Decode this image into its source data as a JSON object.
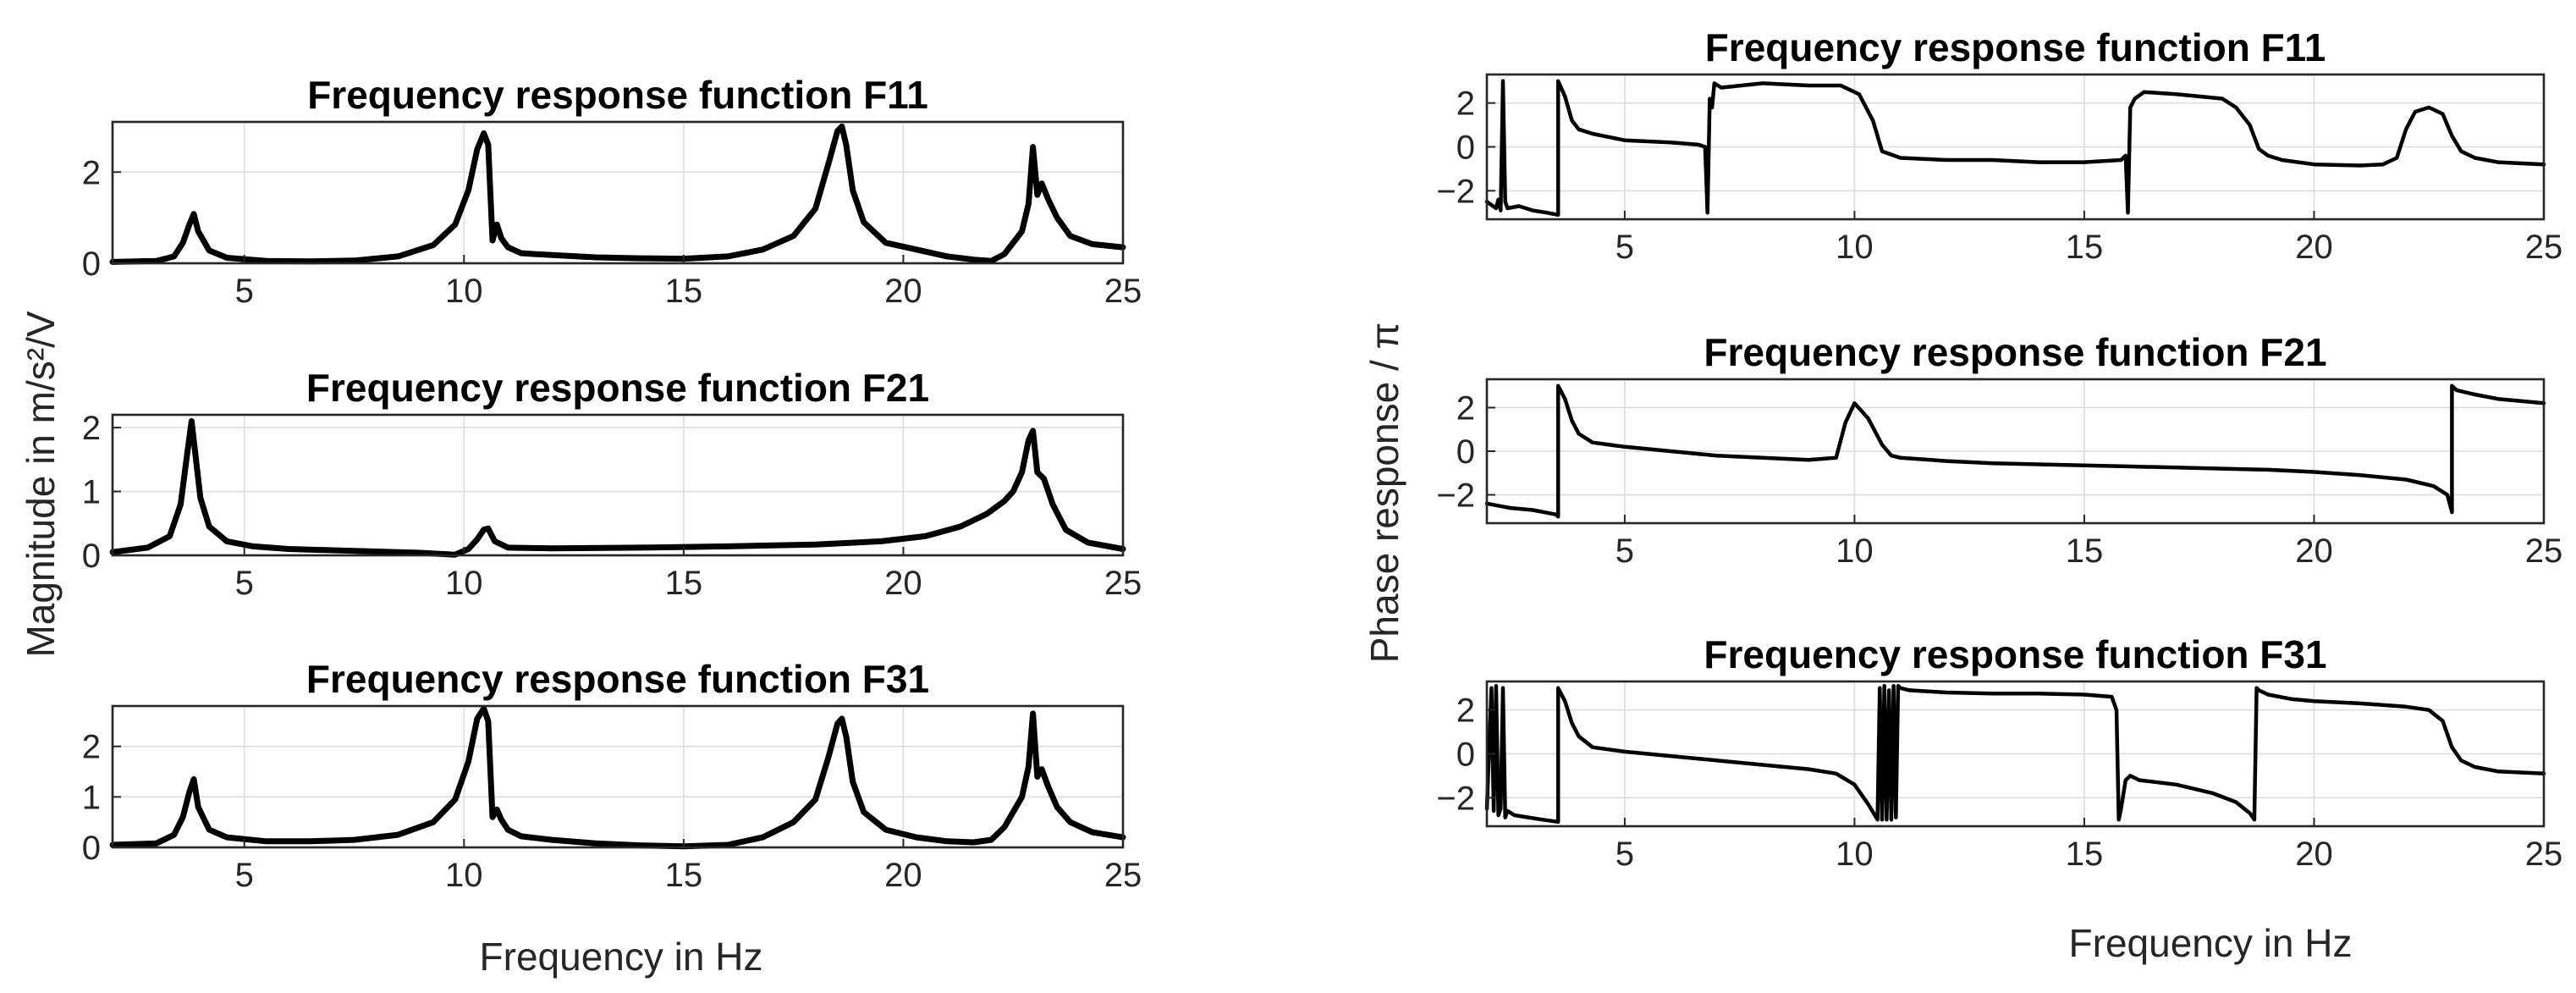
{
  "figure": {
    "left_ylabel": "Magnitude in m/s²/V",
    "left_xlabel": "Frequency in Hz",
    "right_ylabel": "Phase response / π",
    "right_xlabel": "Frequency in Hz"
  },
  "chart_data": [
    {
      "type": "line",
      "id": "mag-F11",
      "title": "Frequency response function F11",
      "xlim": [
        2,
        25
      ],
      "ylim": [
        0,
        3.1
      ],
      "xticks": [
        5,
        10,
        15,
        20,
        25
      ],
      "yticks": [
        0,
        2
      ],
      "grid": true,
      "series": [
        {
          "x": [
            2.0,
            3.0,
            3.4,
            3.6,
            3.75,
            3.85,
            3.95,
            4.2,
            4.6,
            5.5,
            6.5,
            7.5,
            8.5,
            9.3,
            9.8,
            10.1,
            10.3,
            10.45,
            10.55,
            10.65,
            10.75,
            10.85,
            11.0,
            11.3,
            12,
            13,
            14,
            15,
            16,
            16.8,
            17.5,
            18.0,
            18.3,
            18.5,
            18.6,
            18.7,
            18.85,
            19.1,
            19.6,
            20.3,
            21.0,
            21.6,
            22.0,
            22.3,
            22.5,
            22.7,
            22.85,
            22.95,
            23.05,
            23.15,
            23.3,
            23.5,
            23.8,
            24.3,
            25.0
          ],
          "y": [
            0.03,
            0.05,
            0.15,
            0.45,
            0.85,
            1.08,
            0.7,
            0.28,
            0.12,
            0.05,
            0.04,
            0.06,
            0.15,
            0.4,
            0.85,
            1.6,
            2.5,
            2.85,
            2.6,
            0.5,
            0.85,
            0.55,
            0.35,
            0.22,
            0.18,
            0.13,
            0.11,
            0.1,
            0.15,
            0.3,
            0.6,
            1.2,
            2.2,
            2.9,
            3.0,
            2.6,
            1.6,
            0.9,
            0.45,
            0.3,
            0.15,
            0.08,
            0.05,
            0.2,
            0.45,
            0.7,
            1.3,
            2.55,
            1.5,
            1.75,
            1.4,
            1.0,
            0.6,
            0.42,
            0.35
          ]
        }
      ]
    },
    {
      "type": "line",
      "id": "mag-F21",
      "title": "Frequency response function F21",
      "xlim": [
        2,
        25
      ],
      "ylim": [
        0,
        2.2
      ],
      "xticks": [
        5,
        10,
        15,
        20,
        25
      ],
      "yticks": [
        0,
        1,
        2
      ],
      "grid": true,
      "series": [
        {
          "x": [
            2.0,
            2.8,
            3.3,
            3.55,
            3.7,
            3.8,
            3.9,
            4.0,
            4.2,
            4.6,
            5.2,
            6,
            7,
            8,
            9,
            9.8,
            10.1,
            10.3,
            10.45,
            10.55,
            10.7,
            11.0,
            12,
            14,
            16,
            18,
            19.5,
            20.5,
            21.3,
            21.9,
            22.3,
            22.5,
            22.7,
            22.85,
            22.95,
            23.05,
            23.2,
            23.4,
            23.7,
            24.2,
            25.0
          ],
          "y": [
            0.05,
            0.12,
            0.3,
            0.8,
            1.6,
            2.1,
            1.5,
            0.9,
            0.45,
            0.22,
            0.14,
            0.1,
            0.08,
            0.06,
            0.04,
            0.01,
            0.1,
            0.25,
            0.4,
            0.42,
            0.22,
            0.12,
            0.11,
            0.12,
            0.14,
            0.17,
            0.22,
            0.3,
            0.45,
            0.65,
            0.85,
            1.0,
            1.3,
            1.8,
            1.95,
            1.3,
            1.2,
            0.8,
            0.4,
            0.2,
            0.1
          ]
        }
      ]
    },
    {
      "type": "line",
      "id": "mag-F31",
      "title": "Frequency response function F31",
      "xlim": [
        2,
        25
      ],
      "ylim": [
        0,
        2.8
      ],
      "xticks": [
        5,
        10,
        15,
        20,
        25
      ],
      "yticks": [
        0,
        1,
        2
      ],
      "grid": true,
      "series": [
        {
          "x": [
            2.0,
            3.0,
            3.4,
            3.6,
            3.75,
            3.85,
            3.95,
            4.2,
            4.6,
            5.5,
            6.5,
            7.5,
            8.5,
            9.3,
            9.8,
            10.1,
            10.3,
            10.45,
            10.55,
            10.65,
            10.75,
            10.85,
            11.0,
            11.3,
            12,
            13,
            14,
            15,
            16,
            16.8,
            17.5,
            18.0,
            18.3,
            18.5,
            18.6,
            18.7,
            18.85,
            19.1,
            19.6,
            20.3,
            21.0,
            21.6,
            22.0,
            22.3,
            22.5,
            22.7,
            22.85,
            22.95,
            23.05,
            23.15,
            23.3,
            23.5,
            23.8,
            24.3,
            25.0
          ],
          "y": [
            0.05,
            0.08,
            0.25,
            0.6,
            1.1,
            1.35,
            0.8,
            0.35,
            0.2,
            0.12,
            0.12,
            0.15,
            0.25,
            0.5,
            0.95,
            1.7,
            2.55,
            2.75,
            2.5,
            0.6,
            0.75,
            0.55,
            0.35,
            0.22,
            0.15,
            0.08,
            0.04,
            0.02,
            0.05,
            0.2,
            0.5,
            0.95,
            1.8,
            2.45,
            2.55,
            2.2,
            1.3,
            0.7,
            0.35,
            0.2,
            0.12,
            0.1,
            0.15,
            0.4,
            0.7,
            1.0,
            1.6,
            2.65,
            1.4,
            1.55,
            1.2,
            0.8,
            0.5,
            0.3,
            0.2
          ]
        }
      ]
    },
    {
      "type": "line",
      "id": "phase-F11",
      "title": "Frequency response function F11",
      "xlim": [
        2,
        25
      ],
      "ylim": [
        -3.3,
        3.3
      ],
      "xticks": [
        5,
        10,
        15,
        20,
        25
      ],
      "yticks": [
        -2,
        0,
        2
      ],
      "grid": true,
      "series": [
        {
          "x": [
            2.0,
            2.2,
            2.25,
            2.3,
            2.35,
            2.4,
            2.45,
            2.7,
            3.0,
            3.3,
            3.55,
            3.55,
            3.7,
            3.85,
            4.0,
            4.3,
            5,
            6,
            6.6,
            6.75,
            6.8,
            6.85,
            6.9,
            6.95,
            7.1,
            8,
            9,
            9.7,
            10.1,
            10.4,
            10.6,
            11,
            12,
            13,
            14,
            15,
            15.8,
            15.9,
            15.95,
            16.0,
            16.1,
            16.3,
            17,
            17.5,
            18.0,
            18.3,
            18.6,
            18.8,
            19.0,
            19.3,
            20,
            21,
            21.5,
            21.8,
            22.0,
            22.2,
            22.5,
            22.8,
            23.0,
            23.2,
            23.5,
            24,
            25
          ],
          "y": [
            -2.5,
            -2.8,
            -2.4,
            -2.9,
            3.0,
            -2.5,
            -2.8,
            -2.7,
            -2.9,
            -3.0,
            -3.1,
            3.0,
            2.3,
            1.2,
            0.8,
            0.6,
            0.3,
            0.2,
            0.1,
            0.0,
            -3.0,
            2.2,
            1.8,
            2.9,
            2.7,
            2.9,
            2.8,
            2.8,
            2.4,
            1.2,
            -0.2,
            -0.5,
            -0.6,
            -0.6,
            -0.7,
            -0.7,
            -0.6,
            -0.4,
            -3.0,
            1.8,
            2.2,
            2.5,
            2.4,
            2.3,
            2.2,
            1.8,
            1.0,
            -0.1,
            -0.4,
            -0.6,
            -0.8,
            -0.85,
            -0.8,
            -0.5,
            0.8,
            1.6,
            1.8,
            1.5,
            0.5,
            -0.2,
            -0.5,
            -0.7,
            -0.8
          ]
        }
      ]
    },
    {
      "type": "line",
      "id": "phase-F21",
      "title": "Frequency response function F21",
      "xlim": [
        2,
        25
      ],
      "ylim": [
        -3.3,
        3.3
      ],
      "xticks": [
        5,
        10,
        15,
        20,
        25
      ],
      "yticks": [
        -2,
        0,
        2
      ],
      "grid": true,
      "series": [
        {
          "x": [
            2.0,
            2.5,
            3.0,
            3.5,
            3.55,
            3.55,
            3.7,
            3.85,
            4.0,
            4.3,
            5,
            6,
            7,
            8,
            9,
            9.6,
            9.8,
            10.0,
            10.3,
            10.6,
            10.8,
            11,
            12,
            13,
            14,
            15,
            16,
            17,
            18,
            19,
            20,
            21,
            22,
            22.6,
            22.9,
            23.0,
            23.0,
            23.1,
            23.5,
            24,
            25
          ],
          "y": [
            -2.4,
            -2.6,
            -2.7,
            -2.9,
            -3.0,
            3.0,
            2.4,
            1.4,
            0.8,
            0.4,
            0.2,
            0.0,
            -0.2,
            -0.3,
            -0.4,
            -0.3,
            1.3,
            2.2,
            1.5,
            0.3,
            -0.2,
            -0.3,
            -0.45,
            -0.55,
            -0.6,
            -0.65,
            -0.7,
            -0.75,
            -0.8,
            -0.85,
            -0.95,
            -1.1,
            -1.3,
            -1.6,
            -2.0,
            -2.8,
            3.0,
            2.8,
            2.6,
            2.4,
            2.2
          ]
        }
      ]
    },
    {
      "type": "line",
      "id": "phase-F31",
      "title": "Frequency response function F31",
      "xlim": [
        2,
        25
      ],
      "ylim": [
        -3.3,
        3.3
      ],
      "xticks": [
        5,
        10,
        15,
        20,
        25
      ],
      "yticks": [
        -2,
        0,
        2
      ],
      "grid": true,
      "series": [
        {
          "x": [
            2.0,
            2.1,
            2.15,
            2.2,
            2.25,
            2.3,
            2.35,
            2.4,
            2.45,
            2.6,
            2.9,
            3.2,
            3.55,
            3.55,
            3.7,
            3.85,
            4.0,
            4.3,
            5,
            6,
            7,
            8,
            9,
            9.6,
            10.0,
            10.3,
            10.5,
            10.55,
            10.6,
            10.65,
            10.7,
            10.75,
            10.8,
            10.85,
            10.9,
            10.95,
            11.0,
            11.2,
            12,
            13,
            14,
            15,
            15.6,
            15.7,
            15.75,
            15.8,
            15.9,
            16.0,
            16.2,
            17,
            17.8,
            18.3,
            18.6,
            18.7,
            18.75,
            18.8,
            19.0,
            19.5,
            20,
            21,
            22,
            22.5,
            22.8,
            23.0,
            23.2,
            23.5,
            24,
            25
          ],
          "y": [
            -2.5,
            3.0,
            -2.6,
            3.1,
            -2.8,
            -2.5,
            3.0,
            -2.9,
            -2.6,
            -2.8,
            -2.9,
            -3.0,
            -3.1,
            3.0,
            2.4,
            1.4,
            0.8,
            0.3,
            0.1,
            -0.1,
            -0.3,
            -0.5,
            -0.7,
            -0.9,
            -1.4,
            -2.3,
            -3.0,
            3.0,
            -3.0,
            3.1,
            -3.0,
            2.9,
            -3.0,
            3.1,
            -2.9,
            3.1,
            3.0,
            2.9,
            2.8,
            2.75,
            2.75,
            2.7,
            2.6,
            2.0,
            -3.0,
            -2.5,
            -1.2,
            -1.0,
            -1.2,
            -1.4,
            -1.8,
            -2.2,
            -2.7,
            -3.0,
            3.0,
            2.9,
            2.7,
            2.5,
            2.4,
            2.3,
            2.15,
            2.0,
            1.5,
            0.3,
            -0.3,
            -0.6,
            -0.8,
            -0.9
          ]
        }
      ]
    }
  ]
}
